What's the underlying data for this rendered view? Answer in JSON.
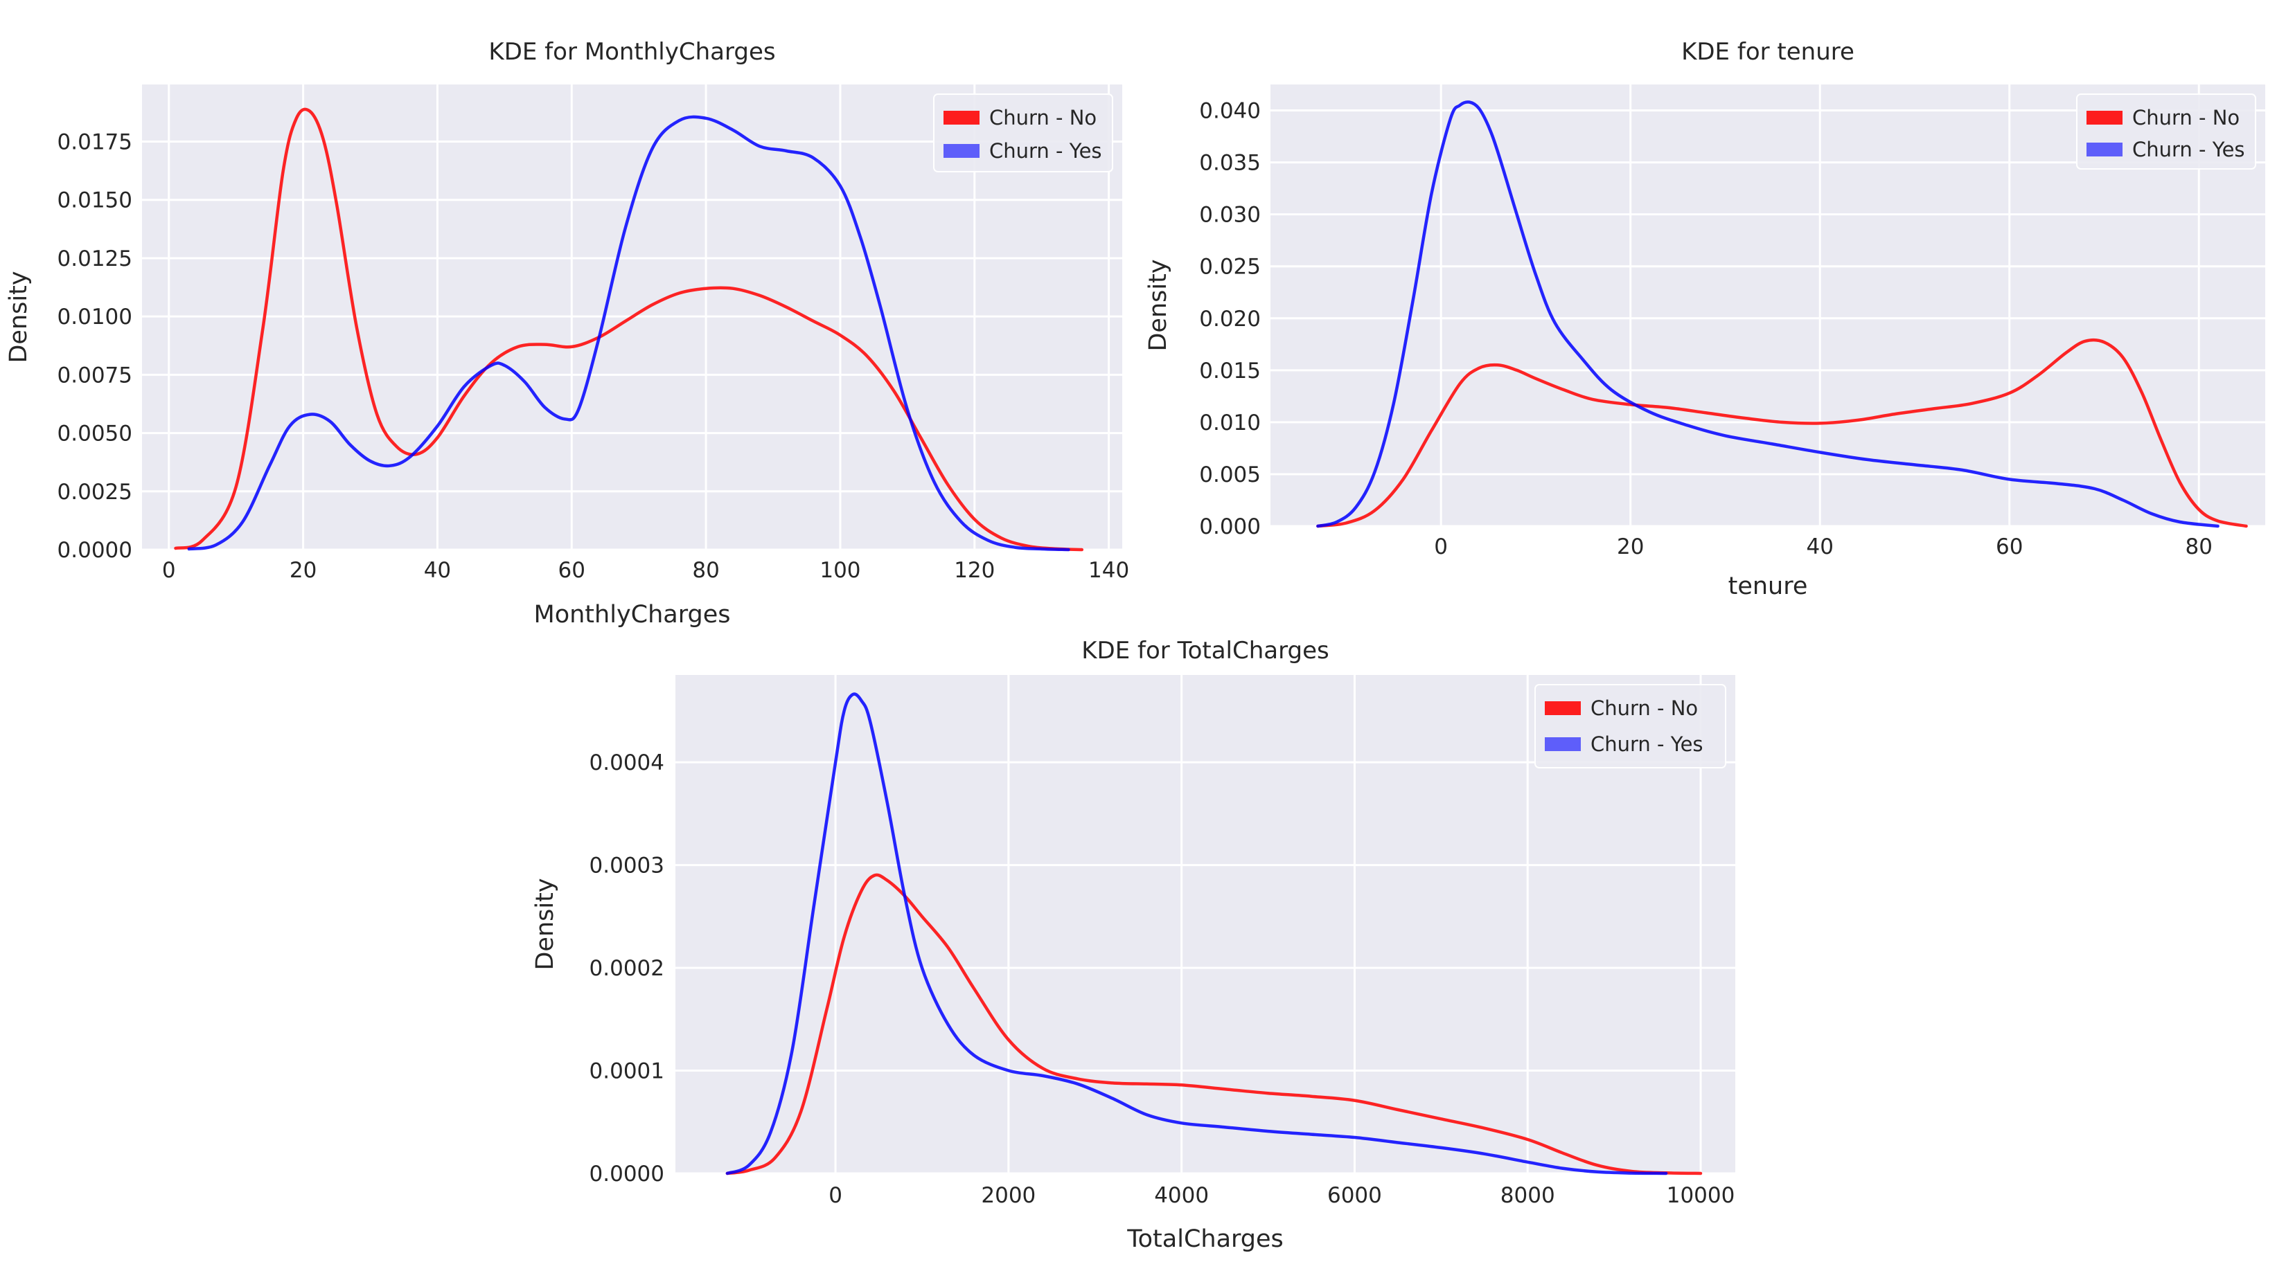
{
  "chart_data": [
    {
      "type": "line",
      "title": "KDE for MonthlyCharges",
      "xlabel": "MonthlyCharges",
      "ylabel": "Density",
      "xlim": [
        -4,
        142
      ],
      "ylim": [
        0,
        0.01995
      ],
      "xticks": [
        0,
        20,
        40,
        60,
        80,
        100,
        120,
        140
      ],
      "xtick_labels": [
        "0",
        "20",
        "40",
        "60",
        "80",
        "100",
        "120",
        "140"
      ],
      "yticks": [
        0,
        0.0025,
        0.005,
        0.0075,
        0.01,
        0.0125,
        0.015,
        0.0175
      ],
      "ytick_labels": [
        "0.0000",
        "0.0025",
        "0.0050",
        "0.0075",
        "0.0100",
        "0.0125",
        "0.0150",
        "0.0175"
      ],
      "grid": true,
      "legend": "top-right",
      "series": [
        {
          "name": "Churn - No",
          "color": "#ff0000",
          "x": [
            1,
            5,
            10,
            14,
            17,
            19,
            21,
            23,
            25,
            28,
            31,
            34,
            37,
            40,
            44,
            48,
            52,
            56,
            60,
            64,
            68,
            72,
            76,
            80,
            84,
            88,
            92,
            96,
            100,
            104,
            108,
            112,
            116,
            120,
            124,
            128,
            132,
            136
          ],
          "y": [
            6e-05,
            0.0004,
            0.0027,
            0.0095,
            0.0162,
            0.0185,
            0.0188,
            0.0176,
            0.0148,
            0.0095,
            0.0058,
            0.0044,
            0.0041,
            0.0048,
            0.0066,
            0.008,
            0.0087,
            0.0088,
            0.0087,
            0.0091,
            0.0098,
            0.0105,
            0.011,
            0.0112,
            0.0112,
            0.0109,
            0.0104,
            0.0098,
            0.0092,
            0.0083,
            0.0068,
            0.0048,
            0.0028,
            0.0013,
            0.0005,
            0.00015,
            4e-05,
            0.0
          ]
        },
        {
          "name": "Churn - Yes",
          "color": "#0000ff",
          "x": [
            3,
            7,
            11,
            15,
            18,
            21,
            24,
            27,
            30,
            33,
            36,
            40,
            44,
            48,
            50,
            53,
            56,
            59,
            61,
            64,
            68,
            72,
            76,
            80,
            84,
            88,
            92,
            96,
            100,
            103,
            106,
            110,
            114,
            118,
            122,
            126,
            130,
            134
          ],
          "y": [
            3e-05,
            0.0002,
            0.0012,
            0.0036,
            0.0053,
            0.0058,
            0.0055,
            0.0045,
            0.0038,
            0.0036,
            0.004,
            0.0053,
            0.007,
            0.0079,
            0.0079,
            0.0072,
            0.0061,
            0.0056,
            0.006,
            0.009,
            0.0138,
            0.0172,
            0.0184,
            0.0185,
            0.018,
            0.0173,
            0.0171,
            0.0168,
            0.0156,
            0.0134,
            0.0104,
            0.006,
            0.0029,
            0.0012,
            0.0004,
            0.0001,
            3e-05,
            0.0
          ]
        }
      ]
    },
    {
      "type": "line",
      "title": "KDE for tenure",
      "xlabel": "tenure",
      "ylabel": "Density",
      "xlim": [
        -18,
        87
      ],
      "ylim": [
        0,
        0.0425
      ],
      "xticks": [
        0,
        20,
        40,
        60,
        80
      ],
      "xtick_labels": [
        "0",
        "20",
        "40",
        "60",
        "80"
      ],
      "yticks": [
        0,
        0.005,
        0.01,
        0.015,
        0.02,
        0.025,
        0.03,
        0.035,
        0.04
      ],
      "ytick_labels": [
        "0.000",
        "0.005",
        "0.010",
        "0.015",
        "0.020",
        "0.025",
        "0.030",
        "0.035",
        "0.040"
      ],
      "grid": true,
      "legend": "top-right",
      "series": [
        {
          "name": "Churn - No",
          "color": "#ff0000",
          "x": [
            -13,
            -10,
            -7,
            -4,
            -1,
            2,
            4,
            6,
            8,
            10,
            13,
            16,
            20,
            24,
            28,
            32,
            36,
            40,
            44,
            48,
            52,
            56,
            60,
            63,
            66,
            68,
            70,
            72,
            74,
            76,
            78,
            80,
            82,
            85
          ],
          "y": [
            0.0,
            0.0003,
            0.0015,
            0.0045,
            0.0092,
            0.0137,
            0.0152,
            0.0155,
            0.015,
            0.0142,
            0.0131,
            0.0122,
            0.0117,
            0.0114,
            0.0109,
            0.0104,
            0.01,
            0.0099,
            0.0102,
            0.0108,
            0.0113,
            0.0118,
            0.0128,
            0.0145,
            0.0167,
            0.0178,
            0.0177,
            0.0162,
            0.0128,
            0.0083,
            0.0042,
            0.0016,
            0.0005,
            0.0
          ]
        },
        {
          "name": "Churn - Yes",
          "color": "#0000ff",
          "x": [
            -13,
            -11,
            -9,
            -7,
            -5,
            -3,
            -1,
            1,
            2,
            3,
            4,
            5,
            6,
            8,
            10,
            12,
            15,
            18,
            22,
            26,
            30,
            35,
            40,
            45,
            50,
            55,
            60,
            65,
            69,
            72,
            75,
            78,
            82
          ],
          "y": [
            0.0,
            0.0004,
            0.0018,
            0.0052,
            0.0118,
            0.0215,
            0.032,
            0.0392,
            0.0405,
            0.0408,
            0.0402,
            0.0385,
            0.036,
            0.03,
            0.0242,
            0.0196,
            0.016,
            0.0131,
            0.011,
            0.0097,
            0.0087,
            0.0079,
            0.0071,
            0.0064,
            0.0059,
            0.0054,
            0.0045,
            0.0041,
            0.0036,
            0.0025,
            0.0012,
            0.0004,
            0.0
          ]
        }
      ]
    },
    {
      "type": "line",
      "title": "KDE for TotalCharges",
      "xlabel": "TotalCharges",
      "ylabel": "Density",
      "xlim": [
        -1850,
        10400
      ],
      "ylim": [
        0,
        0.000485
      ],
      "xticks": [
        0,
        2000,
        4000,
        6000,
        8000,
        10000
      ],
      "xtick_labels": [
        "0",
        "2000",
        "4000",
        "6000",
        "8000",
        "10000"
      ],
      "yticks": [
        0,
        0.0001,
        0.0002,
        0.0003,
        0.0004
      ],
      "ytick_labels": [
        "0.0000",
        "0.0001",
        "0.0002",
        "0.0003",
        "0.0004"
      ],
      "grid": true,
      "legend": "top-right",
      "series": [
        {
          "name": "Churn - No",
          "color": "#ff0000",
          "x": [
            -1250,
            -1000,
            -700,
            -400,
            -100,
            100,
            300,
            450,
            600,
            800,
            1000,
            1300,
            1600,
            2000,
            2400,
            2800,
            3200,
            3600,
            4000,
            4500,
            5000,
            5500,
            6000,
            6500,
            7000,
            7500,
            8000,
            8400,
            8800,
            9200,
            9600,
            10000
          ],
          "y": [
            0.0,
            3e-06,
            1.5e-05,
            6e-05,
            0.00016,
            0.00023,
            0.000275,
            0.00029,
            0.000285,
            0.00027,
            0.00025,
            0.00022,
            0.00018,
            0.00013,
            0.000102,
            9.2e-05,
            8.8e-05,
            8.7e-05,
            8.6e-05,
            8.2e-05,
            7.8e-05,
            7.5e-05,
            7.1e-05,
            6.2e-05,
            5.3e-05,
            4.4e-05,
            3.3e-05,
            2e-05,
            8e-06,
            2e-06,
            5e-07,
            0.0
          ]
        },
        {
          "name": "Churn - Yes",
          "color": "#0000ff",
          "x": [
            -1250,
            -1000,
            -750,
            -500,
            -250,
            0,
            100,
            200,
            300,
            400,
            600,
            800,
            1000,
            1300,
            1600,
            2000,
            2400,
            2800,
            3200,
            3600,
            4000,
            4500,
            5000,
            5500,
            6000,
            6500,
            7000,
            7500,
            8000,
            8400,
            8800,
            9200,
            9600
          ],
          "y": [
            0.0,
            8e-06,
            4e-05,
            0.00012,
            0.00026,
            0.0004,
            0.00045,
            0.000466,
            0.00046,
            0.00044,
            0.00036,
            0.00027,
            0.0002,
            0.000145,
            0.000115,
            0.0001,
            9.5e-05,
            8.7e-05,
            7.3e-05,
            5.7e-05,
            4.9e-05,
            4.5e-05,
            4.1e-05,
            3.8e-05,
            3.5e-05,
            3e-05,
            2.5e-05,
            1.9e-05,
            1.1e-05,
            5e-06,
            1.5e-06,
            3e-07,
            0.0
          ]
        }
      ]
    }
  ]
}
